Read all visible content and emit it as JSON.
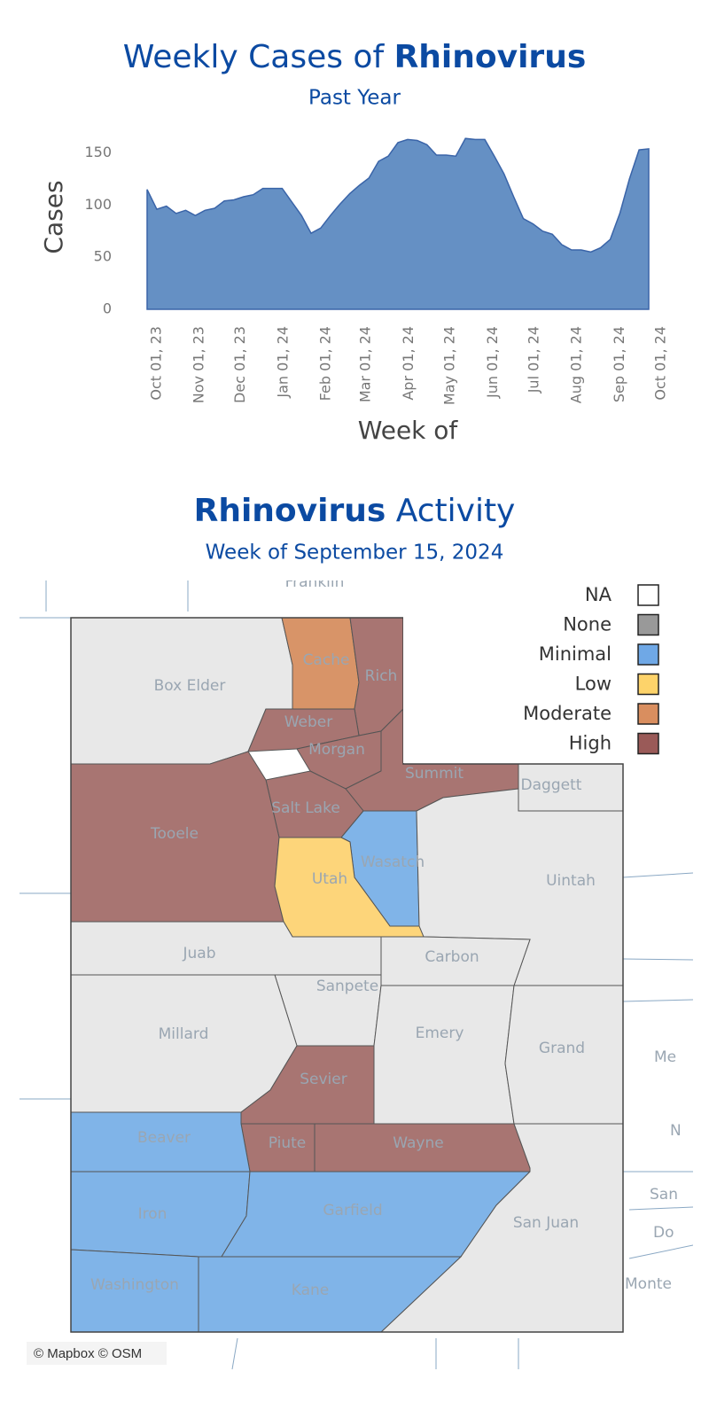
{
  "chart_data": {
    "type": "area",
    "title": [
      "Weekly Cases of",
      "Rhinovirus"
    ],
    "subtitle": "Past Year",
    "y_label": "Cases",
    "x_label": "Week of",
    "color": "#6590c4",
    "line_color": "#3a64a8",
    "x": [
      "2023-09-24",
      "2023-10-01",
      "2023-10-08",
      "2023-10-15",
      "2023-10-22",
      "2023-10-29",
      "2023-11-05",
      "2023-11-12",
      "2023-11-19",
      "2023-11-26",
      "2023-12-03",
      "2023-12-10",
      "2023-12-17",
      "2023-12-24",
      "2023-12-31",
      "2024-01-07",
      "2024-01-14",
      "2024-01-21",
      "2024-01-28",
      "2024-02-04",
      "2024-02-11",
      "2024-02-18",
      "2024-02-25",
      "2024-03-03",
      "2024-03-10",
      "2024-03-17",
      "2024-03-24",
      "2024-03-31",
      "2024-04-07",
      "2024-04-14",
      "2024-04-21",
      "2024-04-28",
      "2024-05-05",
      "2024-05-12",
      "2024-05-19",
      "2024-05-26",
      "2024-06-02",
      "2024-06-09",
      "2024-06-16",
      "2024-06-23",
      "2024-06-30",
      "2024-07-07",
      "2024-07-14",
      "2024-07-21",
      "2024-07-28",
      "2024-08-04",
      "2024-08-11",
      "2024-08-18",
      "2024-08-25",
      "2024-09-01",
      "2024-09-08",
      "2024-09-15",
      "2024-09-22"
    ],
    "values": [
      115,
      96,
      99,
      92,
      95,
      90,
      95,
      97,
      104,
      105,
      108,
      110,
      116,
      116,
      116,
      103,
      90,
      73,
      78,
      90,
      101,
      111,
      119,
      126,
      142,
      147,
      160,
      163,
      162,
      158,
      148,
      148,
      147,
      164,
      163,
      163,
      147,
      130,
      108,
      87,
      82,
      75,
      72,
      62,
      57,
      57,
      55,
      59,
      67,
      92,
      125,
      153,
      154
    ],
    "xlim": [
      "2023-09-24",
      "2024-10-01"
    ],
    "xticks": [
      {
        "value": "2023-10-01",
        "label": "Oct 01, 23"
      },
      {
        "value": "2023-11-01",
        "label": "Nov 01, 23"
      },
      {
        "value": "2023-12-01",
        "label": "Dec 01, 23"
      },
      {
        "value": "2024-01-01",
        "label": "Jan 01, 24"
      },
      {
        "value": "2024-02-01",
        "label": "Feb 01, 24"
      },
      {
        "value": "2024-03-01",
        "label": "Mar 01, 24"
      },
      {
        "value": "2024-04-01",
        "label": "Apr 01, 24"
      },
      {
        "value": "2024-05-01",
        "label": "May 01, 24"
      },
      {
        "value": "2024-06-01",
        "label": "Jun 01, 24"
      },
      {
        "value": "2024-07-01",
        "label": "Jul 01, 24"
      },
      {
        "value": "2024-08-01",
        "label": "Aug 01, 24"
      },
      {
        "value": "2024-09-01",
        "label": "Sep 01, 24"
      },
      {
        "value": "2024-10-01",
        "label": "Oct 01, 24"
      }
    ],
    "ylim": [
      0,
      165
    ],
    "yticks": [
      0,
      50,
      100,
      150
    ],
    "grid": false
  },
  "map": {
    "title": [
      "Rhinovirus",
      "Activity"
    ],
    "subtitle": "Week of September 15, 2024",
    "legend": [
      {
        "label": "NA",
        "swatch": "#ffffff",
        "fill": "#ffffff"
      },
      {
        "label": "None",
        "swatch": "#999999",
        "fill": "#e8e8e8"
      },
      {
        "label": "Minimal",
        "swatch": "#6fa8e6",
        "fill": "#80b4e8"
      },
      {
        "label": "Low",
        "swatch": "#fdd36a",
        "fill": "#fdd57a"
      },
      {
        "label": "Moderate",
        "swatch": "#d98e5f",
        "fill": "#d89468"
      },
      {
        "label": "High",
        "swatch": "#9a5a58",
        "fill": "#a87572"
      }
    ],
    "counties": [
      {
        "name": "Box Elder",
        "level": "None"
      },
      {
        "name": "Cache",
        "level": "Moderate"
      },
      {
        "name": "Rich",
        "level": "High"
      },
      {
        "name": "Weber",
        "level": "High"
      },
      {
        "name": "Morgan",
        "level": "High"
      },
      {
        "name": "Summit",
        "level": "High"
      },
      {
        "name": "Daggett",
        "level": "None"
      },
      {
        "name": "Salt Lake",
        "level": "High"
      },
      {
        "name": "Tooele",
        "level": "High"
      },
      {
        "name": "Wasatch",
        "level": "Minimal"
      },
      {
        "name": "Utah",
        "level": "Low"
      },
      {
        "name": "Uintah",
        "level": "None"
      },
      {
        "name": "Juab",
        "level": "None"
      },
      {
        "name": "Carbon",
        "level": "None"
      },
      {
        "name": "Sanpete",
        "level": "None"
      },
      {
        "name": "Millard",
        "level": "None"
      },
      {
        "name": "Emery",
        "level": "None"
      },
      {
        "name": "Grand",
        "level": "None"
      },
      {
        "name": "Sevier",
        "level": "High"
      },
      {
        "name": "Piute",
        "level": "High"
      },
      {
        "name": "Wayne",
        "level": "High"
      },
      {
        "name": "Beaver",
        "level": "Minimal"
      },
      {
        "name": "Iron",
        "level": "Minimal"
      },
      {
        "name": "Garfield",
        "level": "Minimal"
      },
      {
        "name": "San Juan",
        "level": "None"
      },
      {
        "name": "Kane",
        "level": "Minimal"
      },
      {
        "name": "Washington",
        "level": "Minimal"
      }
    ],
    "outside_labels": [
      "Franklin",
      "Me",
      "N",
      "San",
      "Do",
      "Monte"
    ],
    "attribution": "© Mapbox © OSM"
  }
}
